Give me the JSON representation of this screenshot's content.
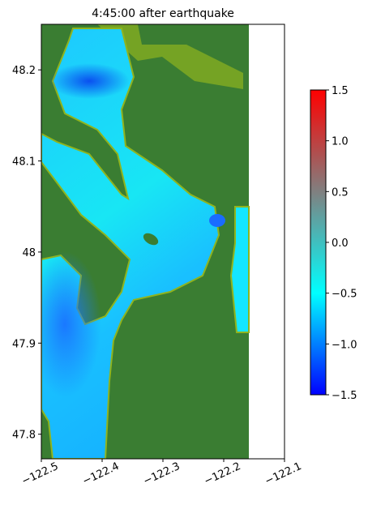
{
  "chart_data": {
    "type": "heatmap",
    "title": "4:45:00 after earthquake",
    "xlim": [
      -122.5,
      -122.1
    ],
    "xticks": [
      {
        "value": -122.5,
        "label": "−122.5"
      },
      {
        "value": -122.4,
        "label": "−122.4"
      },
      {
        "value": -122.3,
        "label": "−122.3"
      },
      {
        "value": -122.2,
        "label": "−122.2"
      },
      {
        "value": -122.1,
        "label": "−122.1"
      }
    ],
    "ylim": [
      47.773,
      48.25
    ],
    "yticks": [
      47.8,
      47.9,
      48.0,
      48.1,
      48.2
    ],
    "colorbar": {
      "lim": [
        -1.5,
        1.5
      ],
      "ticks": [
        {
          "value": -1.5,
          "label": "−1.5"
        },
        {
          "value": -1.0,
          "label": "−1.0"
        },
        {
          "value": -0.5,
          "label": "−0.5"
        },
        {
          "value": 0,
          "label": "0.0"
        },
        0.5,
        {
          "value": 1.0,
          "label": "1.0"
        },
        1.5
      ],
      "colors": [
        "#0000ff",
        "#00ffff",
        "#808080",
        "#ff0000"
      ]
    }
  }
}
